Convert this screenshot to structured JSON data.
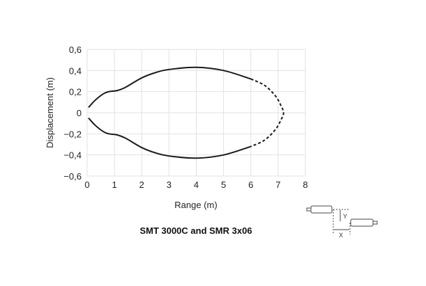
{
  "chart_data": {
    "type": "line",
    "title": "SMT 3000C and SMR 3x06",
    "xlabel": "Range (m)",
    "ylabel": "Displacement (m)",
    "xlim": [
      0,
      8
    ],
    "ylim": [
      -0.6,
      0.6
    ],
    "grid": true,
    "xticks": [
      "0",
      "1",
      "2",
      "3",
      "4",
      "5",
      "6",
      "7",
      "8"
    ],
    "yticks": [
      "0,6",
      "0,4",
      "0,2",
      "0",
      "−0,2",
      "−0,4",
      "−0,6"
    ],
    "series": [
      {
        "style": "solid",
        "x": [
          0.05,
          0.3,
          0.6,
          0.8,
          1.1,
          1.4,
          2,
          2.5,
          3,
          4,
          5,
          6
        ],
        "y": [
          0.05,
          0.12,
          0.18,
          0.2,
          0.21,
          0.24,
          0.33,
          0.38,
          0.41,
          0.43,
          0.4,
          0.32
        ]
      },
      {
        "style": "dashed",
        "x": [
          6,
          6.5,
          6.9,
          7.1,
          7.2,
          7.1,
          6.9,
          6.5,
          6
        ],
        "y": [
          0.32,
          0.26,
          0.16,
          0.07,
          0,
          -0.07,
          -0.16,
          -0.26,
          -0.32
        ]
      },
      {
        "style": "solid",
        "x": [
          0.05,
          0.3,
          0.6,
          0.8,
          1.1,
          1.4,
          2,
          2.5,
          3,
          4,
          5,
          6
        ],
        "y": [
          -0.05,
          -0.12,
          -0.18,
          -0.2,
          -0.21,
          -0.24,
          -0.33,
          -0.38,
          -0.41,
          -0.43,
          -0.4,
          -0.32
        ]
      }
    ],
    "line_color": "#1a1a1a",
    "grid_color": "#e2e2e2"
  },
  "diagram": {
    "y_label": "Y",
    "x_label": "X"
  }
}
